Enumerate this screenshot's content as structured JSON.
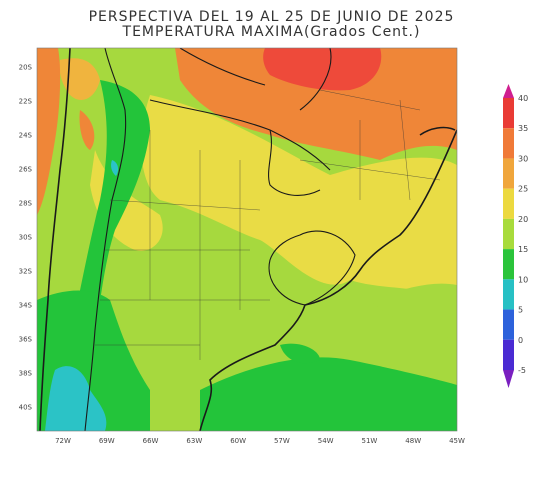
{
  "title_line1": "PERSPECTIVA DEL 19 AL 25 DE JUNIO DE 2025",
  "title_line2": "TEMPERATURA MAXIMA(Grados Cent.)",
  "lat_ticks": [
    "20S",
    "22S",
    "24S",
    "26S",
    "28S",
    "30S",
    "32S",
    "34S",
    "36S",
    "38S",
    "40S"
  ],
  "lon_ticks": [
    "72W",
    "69W",
    "66W",
    "63W",
    "60W",
    "57W",
    "54W",
    "51W",
    "48W",
    "45W"
  ],
  "colorbar": {
    "levels": [
      "40",
      "35",
      "30",
      "25",
      "20",
      "15",
      "10",
      "5",
      "0",
      "-5"
    ],
    "colors": [
      "#d01f8f",
      "#e93b35",
      "#f07a38",
      "#f0a63c",
      "#ecd93f",
      "#a8db3c",
      "#2bc43b",
      "#27c0c4",
      "#2d62db",
      "#4a2bd3",
      "#7a1fc0"
    ]
  },
  "legend_colors": {
    "very_hot": "#ee4a3a",
    "hot": "#ef8638",
    "warm": "#f0b43e",
    "mild": "#e9dc45",
    "cool": "#a6d93e",
    "cold": "#23c43a",
    "very_cold": "#2bc3c6",
    "map_outline": "#1a1a1a"
  }
}
